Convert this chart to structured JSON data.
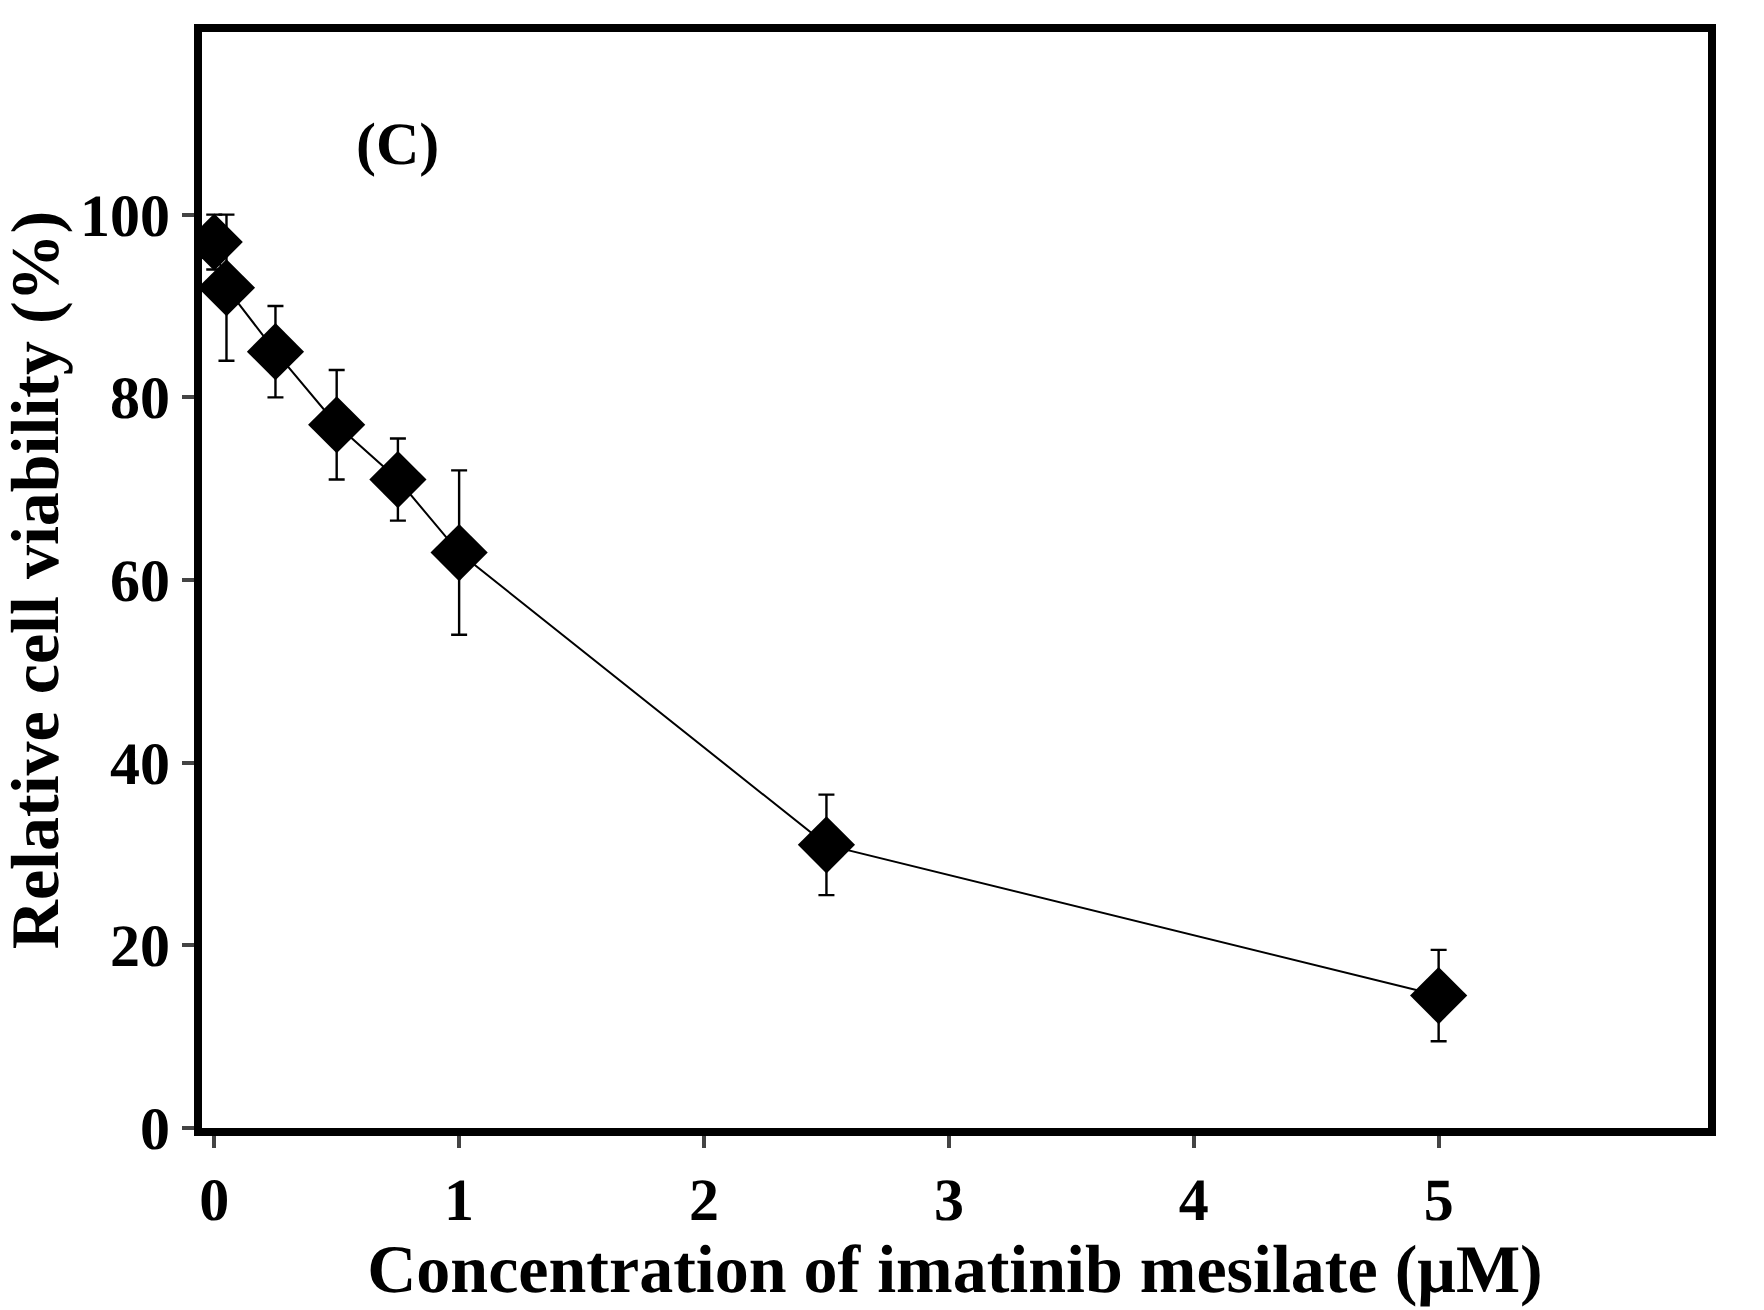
{
  "chart_data": {
    "type": "line",
    "xlabel": "Concentration of imatinib mesilate (μM)",
    "ylabel": "Relative cell viability (%)",
    "annotations": [
      "(C)"
    ],
    "x": [
      0,
      0.05,
      0.25,
      0.5,
      0.75,
      1,
      2.5,
      5
    ],
    "series": [
      {
        "color": "#000000",
        "values": [
          97,
          92,
          85,
          77,
          71,
          63,
          31,
          14.5
        ],
        "errors": [
          3,
          8,
          5,
          6,
          4.5,
          9,
          5.5,
          5
        ]
      }
    ],
    "xlim": [
      -0.05,
      6.1
    ],
    "ylim": [
      0,
      120
    ],
    "xticks": [
      0,
      1,
      2,
      3,
      4,
      5
    ],
    "yticks": [
      0,
      20,
      40,
      60,
      80,
      100
    ],
    "marker": "diamond",
    "line_style": "solid"
  }
}
